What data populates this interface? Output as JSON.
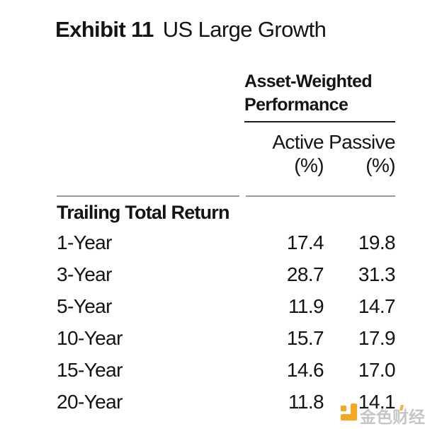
{
  "exhibit": {
    "label": "Exhibit 11",
    "title": "US Large Growth"
  },
  "table": {
    "group_header_line1": "Asset-Weighted",
    "group_header_line2": "Performance",
    "columns": [
      {
        "label": "Active",
        "unit": "(%)"
      },
      {
        "label": "Passive",
        "unit": "(%)"
      }
    ],
    "section": "Trailing Total Return",
    "rows": [
      {
        "label": "1-Year",
        "active": "17.4",
        "passive": "19.8"
      },
      {
        "label": "3-Year",
        "active": "28.7",
        "passive": "31.3"
      },
      {
        "label": "5-Year",
        "active": "11.9",
        "passive": "14.7"
      },
      {
        "label": "10-Year",
        "active": "15.7",
        "passive": "17.9"
      },
      {
        "label": "15-Year",
        "active": "14.6",
        "passive": "17.0"
      },
      {
        "label": "20-Year",
        "active": "11.8",
        "passive": "14.1"
      }
    ]
  },
  "watermark": {
    "text": "金色财经",
    "icon": "jinse-finance-logo-icon",
    "orange": "#F5A623",
    "text_color": "#A8A8A8"
  },
  "colors": {
    "text": "#141414",
    "rule_dark": "#1C1C1C",
    "rule_gray": "#9A9A9A",
    "background": "#FFFFFF"
  },
  "chart_data": {
    "type": "table",
    "title": "Exhibit 11 US Large Growth",
    "group_header": "Asset-Weighted Performance",
    "section": "Trailing Total Return",
    "columns": [
      "Active (%)",
      "Passive (%)"
    ],
    "categories": [
      "1-Year",
      "3-Year",
      "5-Year",
      "10-Year",
      "15-Year",
      "20-Year"
    ],
    "series": [
      {
        "name": "Active (%)",
        "values": [
          17.4,
          28.7,
          11.9,
          15.7,
          14.6,
          11.8
        ]
      },
      {
        "name": "Passive (%)",
        "values": [
          19.8,
          31.3,
          14.7,
          17.9,
          17.0,
          14.1
        ]
      }
    ]
  }
}
